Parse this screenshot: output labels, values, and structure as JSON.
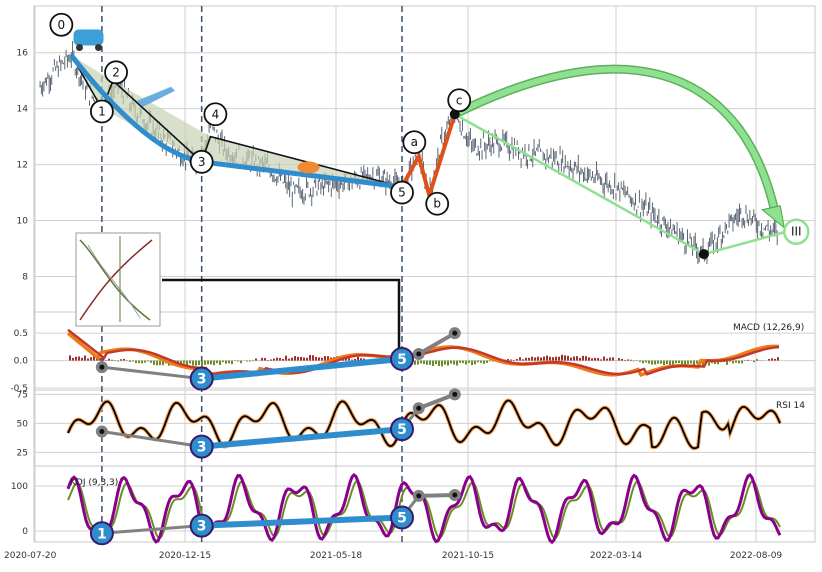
{
  "chart_data": {
    "type": "line",
    "x_dates": [
      "2020-07-20",
      "2020-12-15",
      "2021-05-18",
      "2021-10-15",
      "2022-03-14",
      "2022-08-09"
    ],
    "panels": {
      "price": {
        "ylim": [
          6.8,
          17.6
        ],
        "yticks": [
          8,
          10,
          12,
          14,
          16
        ],
        "vlines": [
          "2020-09-24",
          "2021-01-01",
          "2021-08-01"
        ],
        "series": [
          {
            "x": "2020-07-25",
            "y": 14.8
          },
          {
            "x": "2020-08-10",
            "y": 15.4
          },
          {
            "x": "2020-08-25",
            "y": 15.9
          },
          {
            "x": "2020-09-10",
            "y": 14.6
          },
          {
            "x": "2020-09-25",
            "y": 14.1
          },
          {
            "x": "2020-10-10",
            "y": 14.9
          },
          {
            "x": "2020-10-25",
            "y": 14.0
          },
          {
            "x": "2020-11-10",
            "y": 13.4
          },
          {
            "x": "2020-11-25",
            "y": 12.9
          },
          {
            "x": "2020-12-10",
            "y": 12.4
          },
          {
            "x": "2020-12-31",
            "y": 12.0
          },
          {
            "x": "2021-01-10",
            "y": 13.4
          },
          {
            "x": "2021-01-25",
            "y": 12.5
          },
          {
            "x": "2021-02-15",
            "y": 12.2
          },
          {
            "x": "2021-03-10",
            "y": 11.9
          },
          {
            "x": "2021-04-05",
            "y": 11.0
          },
          {
            "x": "2021-05-01",
            "y": 11.2
          },
          {
            "x": "2021-06-01",
            "y": 11.4
          },
          {
            "x": "2021-07-01",
            "y": 11.6
          },
          {
            "x": "2021-08-01",
            "y": 11.2
          },
          {
            "x": "2021-08-20",
            "y": 12.4
          },
          {
            "x": "2021-09-01",
            "y": 10.9
          },
          {
            "x": "2021-09-15",
            "y": 12.8
          },
          {
            "x": "2021-09-30",
            "y": 13.8
          },
          {
            "x": "2021-10-20",
            "y": 12.6
          },
          {
            "x": "2021-11-15",
            "y": 12.8
          },
          {
            "x": "2021-12-15",
            "y": 12.4
          },
          {
            "x": "2022-01-15",
            "y": 12.2
          },
          {
            "x": "2022-02-15",
            "y": 11.6
          },
          {
            "x": "2022-03-15",
            "y": 11.2
          },
          {
            "x": "2022-04-15",
            "y": 10.4
          },
          {
            "x": "2022-05-15",
            "y": 9.6
          },
          {
            "x": "2022-06-15",
            "y": 8.8
          },
          {
            "x": "2022-07-10",
            "y": 9.8
          },
          {
            "x": "2022-07-25",
            "y": 10.3
          },
          {
            "x": "2022-08-15",
            "y": 9.8
          },
          {
            "x": "2022-09-01",
            "y": 9.5
          }
        ],
        "waves": [
          {
            "label": "0",
            "x": "2020-08-25",
            "y": 15.9,
            "lx": "2020-08-15",
            "ly": 17.0
          },
          {
            "label": "1",
            "x": "2020-09-24",
            "y": 14.0,
            "lx": "2020-09-24",
            "ly": 13.9
          },
          {
            "label": "2",
            "x": "2020-10-05",
            "y": 15.0,
            "lx": "2020-10-08",
            "ly": 15.3
          },
          {
            "label": "3",
            "x": "2021-01-01",
            "y": 12.1,
            "lx": "2021-01-01",
            "ly": 12.1
          },
          {
            "label": "4",
            "x": "2021-01-10",
            "y": 13.0,
            "lx": "2021-01-15",
            "ly": 13.8
          },
          {
            "label": "5",
            "x": "2021-08-01",
            "y": 11.2,
            "lx": "2021-08-01",
            "ly": 11.0
          },
          {
            "label": "a",
            "x": "2021-08-20",
            "y": 12.3,
            "lx": "2021-08-15",
            "ly": 12.8
          },
          {
            "label": "b",
            "x": "2021-09-01",
            "y": 10.9,
            "lx": "2021-09-10",
            "ly": 10.6
          },
          {
            "label": "c",
            "x": "2021-09-30",
            "y": 13.8,
            "lx": "2021-10-05",
            "ly": 14.3
          }
        ],
        "forecast_label": "III",
        "forecast_point": {
          "x": "2022-09-10",
          "y": 9.6
        },
        "forecast_low": {
          "x": "2022-06-15",
          "y": 8.8
        }
      },
      "macd": {
        "label": "MACD (12,26,9)",
        "ylim": [
          -0.5,
          0.85
        ],
        "yticks": [
          -0.5,
          0.0,
          0.5
        ],
        "marker_labels": [
          "3",
          "5"
        ],
        "trend_points": [
          {
            "x": "2020-09-24",
            "y": -0.12
          },
          {
            "x": "2021-01-01",
            "y": -0.33
          },
          {
            "x": "2021-08-01",
            "y": 0.03
          },
          {
            "x": "2021-08-20",
            "y": 0.12
          },
          {
            "x": "2021-09-30",
            "y": 0.5
          }
        ]
      },
      "rsi": {
        "label": "RSI 14",
        "ylim": [
          15,
          77
        ],
        "yticks": [
          25,
          50,
          75
        ],
        "marker_labels": [
          "3",
          "5"
        ],
        "trend_points": [
          {
            "x": "2020-09-24",
            "y": 43
          },
          {
            "x": "2021-01-01",
            "y": 30
          },
          {
            "x": "2021-08-01",
            "y": 45
          },
          {
            "x": "2021-08-20",
            "y": 63
          },
          {
            "x": "2021-09-30",
            "y": 75
          }
        ]
      },
      "kdj": {
        "label": "KDJ (9,3,3)",
        "ylim": [
          -20,
          140
        ],
        "yticks": [
          0,
          100
        ],
        "marker_labels": [
          "1",
          "3",
          "5"
        ],
        "trend_points": [
          {
            "x": "2020-09-24",
            "y": -5
          },
          {
            "x": "2021-01-01",
            "y": 12
          },
          {
            "x": "2021-08-01",
            "y": 30
          },
          {
            "x": "2021-08-20",
            "y": 78
          },
          {
            "x": "2021-09-30",
            "y": 80
          }
        ]
      }
    },
    "colors": {
      "price": "#4a5668",
      "wave_blue": "#2f8ccd",
      "wave_black": "#111111",
      "wave_shade": "#c8d2b4",
      "abc": "#e0501a",
      "forecast": "#8fe08f",
      "macd_line": "#f07a1a",
      "macd_signal": "#c0392b",
      "macd_hist_pos": "#a03030",
      "macd_hist_neg": "#6a8e23",
      "rsi_outer": "#f4a460",
      "rsi_inner": "#000000",
      "kdj_k": "#8b008b",
      "kdj_d": "#6b8e23",
      "trend_gray": "#808080",
      "grid": "#d0d0d0",
      "vline": "#3a5070"
    }
  }
}
